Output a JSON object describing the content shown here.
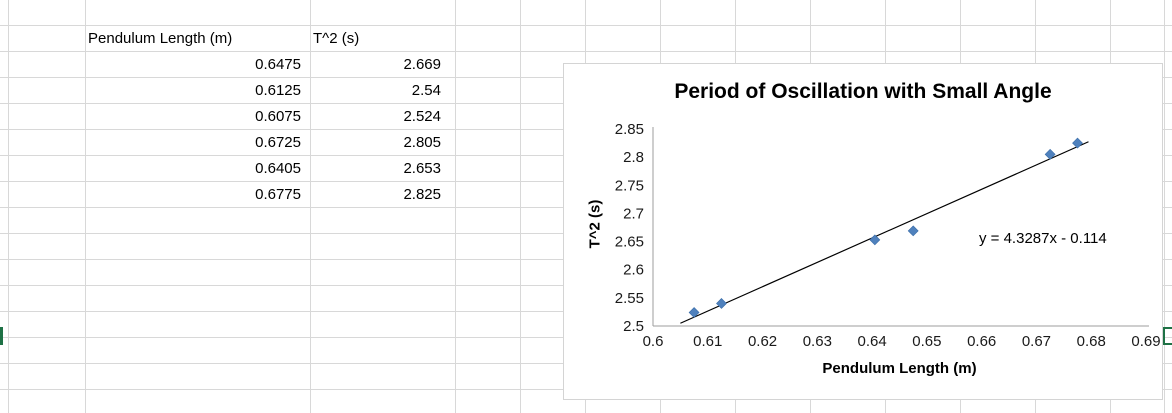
{
  "sheet": {
    "col1_header": "Pendulum Length (m)",
    "col2_header": "T^2 (s)",
    "rows": [
      {
        "length": "0.6475",
        "t2": "2.669"
      },
      {
        "length": "0.6125",
        "t2": "2.54"
      },
      {
        "length": "0.6075",
        "t2": "2.524"
      },
      {
        "length": "0.6725",
        "t2": "2.805"
      },
      {
        "length": "0.6405",
        "t2": "2.653"
      },
      {
        "length": "0.6775",
        "t2": "2.825"
      }
    ]
  },
  "chart_data": {
    "type": "scatter",
    "title": "Period of Oscillation with Small Angle",
    "xlabel": "Pendulum Length (m)",
    "ylabel": "T^2 (s)",
    "x": [
      0.6475,
      0.6125,
      0.6075,
      0.6725,
      0.6405,
      0.6775
    ],
    "y": [
      2.669,
      2.54,
      2.524,
      2.805,
      2.653,
      2.825
    ],
    "xlim": [
      0.6,
      0.69
    ],
    "ylim": [
      2.5,
      2.85
    ],
    "x_ticks": [
      0.6,
      0.61,
      0.62,
      0.63,
      0.64,
      0.65,
      0.66,
      0.67,
      0.68,
      0.69
    ],
    "y_ticks": [
      2.5,
      2.55,
      2.6,
      2.65,
      2.7,
      2.75,
      2.8,
      2.85
    ],
    "grid": false,
    "legend": "none",
    "marker_color": "#4f81bd",
    "marker_stroke": "#3a6da8",
    "trendline": {
      "slope": 4.3287,
      "intercept": -0.114,
      "label": "y = 4.3287x - 0.114",
      "color": "#000000",
      "x_start": 0.605,
      "x_end": 0.6795
    }
  }
}
